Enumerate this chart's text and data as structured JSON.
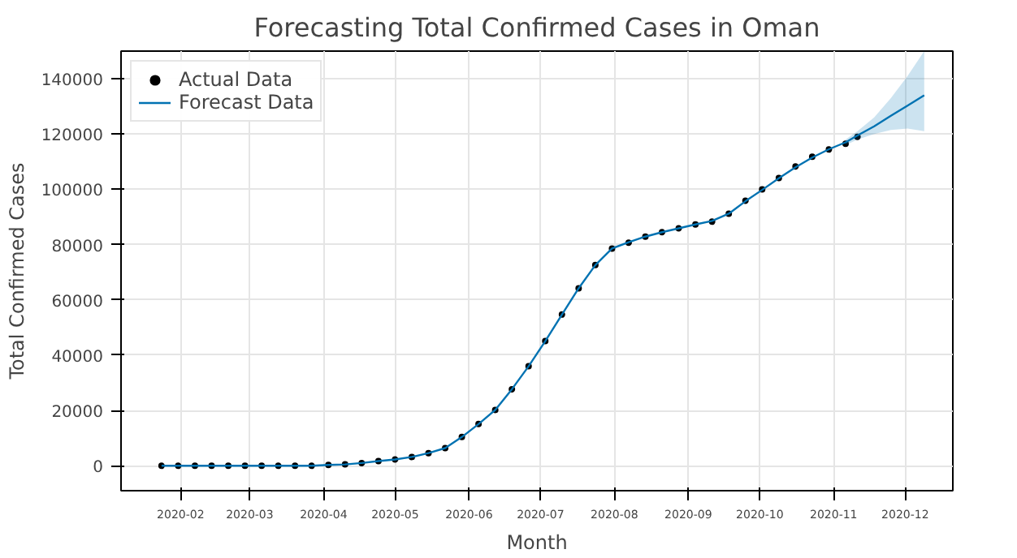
{
  "chart_data": {
    "type": "line",
    "title": "Forecasting Total Confirmed Cases in Oman",
    "xlabel": "Month",
    "ylabel": "Total Confirmed Cases",
    "x": [
      "2020-01-24",
      "2020-01-31",
      "2020-02-07",
      "2020-02-14",
      "2020-02-21",
      "2020-02-28",
      "2020-03-06",
      "2020-03-13",
      "2020-03-20",
      "2020-03-27",
      "2020-04-03",
      "2020-04-10",
      "2020-04-17",
      "2020-04-24",
      "2020-05-01",
      "2020-05-08",
      "2020-05-15",
      "2020-05-22",
      "2020-05-29",
      "2020-06-05",
      "2020-06-12",
      "2020-06-19",
      "2020-06-26",
      "2020-07-03",
      "2020-07-10",
      "2020-07-17",
      "2020-07-24",
      "2020-07-31",
      "2020-08-07",
      "2020-08-14",
      "2020-08-21",
      "2020-08-28",
      "2020-09-04",
      "2020-09-11",
      "2020-09-18",
      "2020-09-25",
      "2020-10-02",
      "2020-10-09",
      "2020-10-16",
      "2020-10-23",
      "2020-10-30",
      "2020-11-06",
      "2020-11-11"
    ],
    "series": [
      {
        "name": "Actual Data",
        "type": "scatter",
        "marker": "circle",
        "color": "#000000",
        "values": [
          0,
          0,
          0,
          0,
          0,
          0,
          0,
          0,
          0,
          0,
          300,
          500,
          1000,
          1700,
          2300,
          3200,
          4600,
          6400,
          10400,
          15100,
          20200,
          27700,
          36000,
          45100,
          54700,
          64200,
          72600,
          78600,
          80700,
          82900,
          84500,
          85900,
          87300,
          88300,
          91200,
          95900,
          100000,
          104100,
          108300,
          111800,
          114400,
          116500,
          119000
        ]
      },
      {
        "name": "Forecast Data",
        "color": "#0072b2",
        "x": [
          "2020-01-24",
          "2020-01-31",
          "2020-02-07",
          "2020-02-14",
          "2020-02-21",
          "2020-02-28",
          "2020-03-06",
          "2020-03-13",
          "2020-03-20",
          "2020-03-27",
          "2020-04-03",
          "2020-04-10",
          "2020-04-17",
          "2020-04-24",
          "2020-05-01",
          "2020-05-08",
          "2020-05-15",
          "2020-05-22",
          "2020-05-29",
          "2020-06-05",
          "2020-06-12",
          "2020-06-19",
          "2020-06-26",
          "2020-07-03",
          "2020-07-10",
          "2020-07-17",
          "2020-07-24",
          "2020-07-31",
          "2020-08-07",
          "2020-08-14",
          "2020-08-21",
          "2020-08-28",
          "2020-09-04",
          "2020-09-11",
          "2020-09-18",
          "2020-09-25",
          "2020-10-02",
          "2020-10-09",
          "2020-10-16",
          "2020-10-23",
          "2020-10-30",
          "2020-11-06",
          "2020-11-11",
          "2020-11-18",
          "2020-11-25",
          "2020-12-02",
          "2020-12-09"
        ],
        "values": [
          0,
          0,
          0,
          0,
          0,
          0,
          0,
          0,
          0,
          0,
          300,
          500,
          1000,
          1700,
          2300,
          3200,
          4600,
          6400,
          10400,
          15100,
          20200,
          27700,
          36000,
          45100,
          54700,
          64200,
          72600,
          78600,
          80900,
          82900,
          84500,
          85900,
          87300,
          88600,
          91200,
          95700,
          99800,
          104000,
          108000,
          111500,
          114500,
          117000,
          119500,
          122800,
          126600,
          130300,
          134000
        ],
        "lower": [
          null,
          null,
          null,
          null,
          null,
          null,
          null,
          null,
          null,
          null,
          null,
          null,
          null,
          null,
          null,
          null,
          null,
          null,
          null,
          null,
          null,
          null,
          null,
          null,
          null,
          null,
          null,
          null,
          null,
          null,
          null,
          null,
          null,
          null,
          null,
          null,
          null,
          null,
          null,
          null,
          null,
          116000,
          118000,
          120000,
          121500,
          122000,
          121000
        ],
        "upper": [
          null,
          null,
          null,
          null,
          null,
          null,
          null,
          null,
          null,
          null,
          null,
          null,
          null,
          null,
          null,
          null,
          null,
          null,
          null,
          null,
          null,
          null,
          null,
          null,
          null,
          null,
          null,
          null,
          null,
          null,
          null,
          null,
          null,
          null,
          null,
          null,
          null,
          null,
          null,
          null,
          null,
          118000,
          121000,
          126000,
          133000,
          141000,
          150000
        ]
      }
    ],
    "xlim": [
      "2020-01-07",
      "2020-12-21"
    ],
    "ylim": [
      -9000,
      150000
    ],
    "xticks": [
      "2020-02",
      "2020-03",
      "2020-04",
      "2020-05",
      "2020-06",
      "2020-07",
      "2020-08",
      "2020-09",
      "2020-10",
      "2020-11",
      "2020-12"
    ],
    "yticks": [
      0,
      20000,
      40000,
      60000,
      80000,
      100000,
      120000,
      140000
    ],
    "grid": true,
    "legend": "top left",
    "line_style": "solid"
  }
}
